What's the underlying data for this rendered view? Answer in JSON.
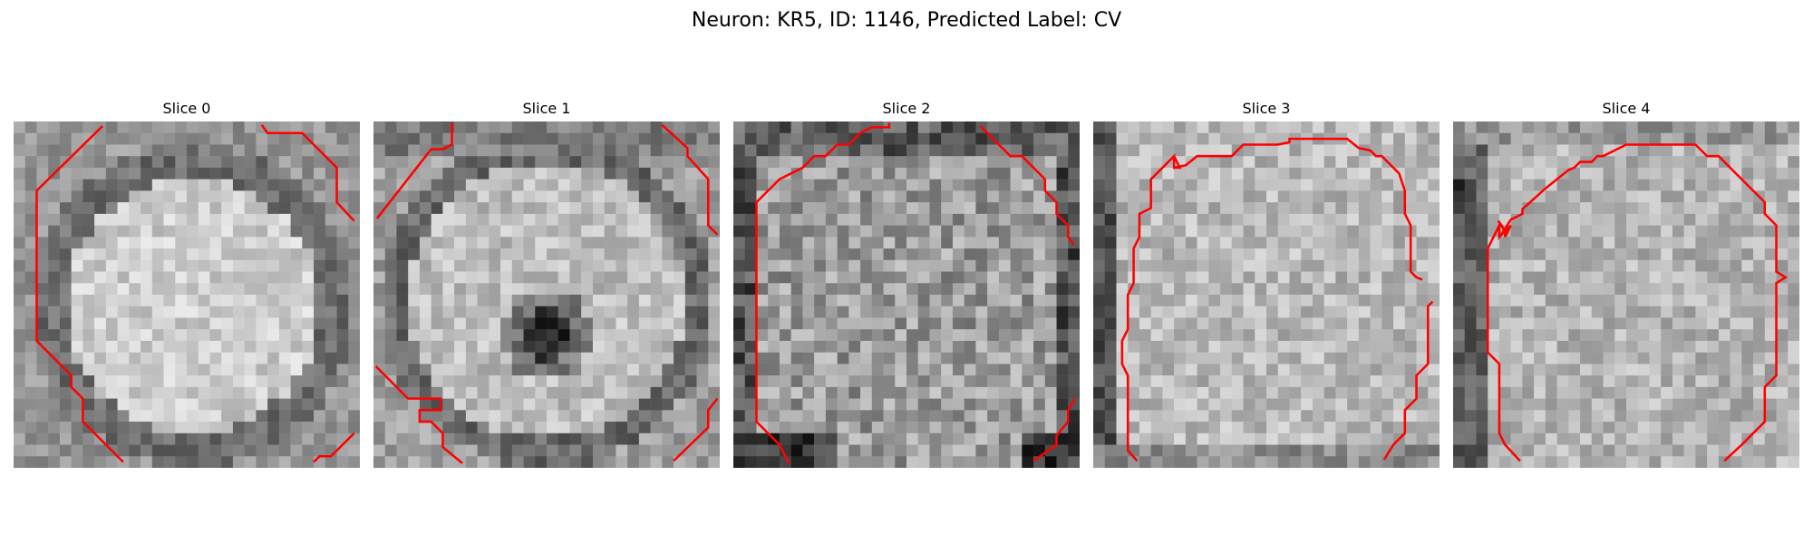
{
  "figure": {
    "title": "Neuron: KR5, ID: 1146, Predicted Label: CV"
  },
  "panels": [
    {
      "title": "Slice 0",
      "pattern": "bright-center-dark-ring",
      "contour_color": "#ff0000"
    },
    {
      "title": "Slice 1",
      "pattern": "bright-with-dark-center-spot",
      "contour_color": "#ff0000"
    },
    {
      "title": "Slice 2",
      "pattern": "noisy-mid-gray-dark-corners",
      "contour_color": "#ff0000"
    },
    {
      "title": "Slice 3",
      "pattern": "noisy-light-gray",
      "contour_color": "#ff0000"
    },
    {
      "title": "Slice 4",
      "pattern": "noisy-light-gray-dark-left-edge",
      "contour_color": "#ff0000"
    }
  ]
}
